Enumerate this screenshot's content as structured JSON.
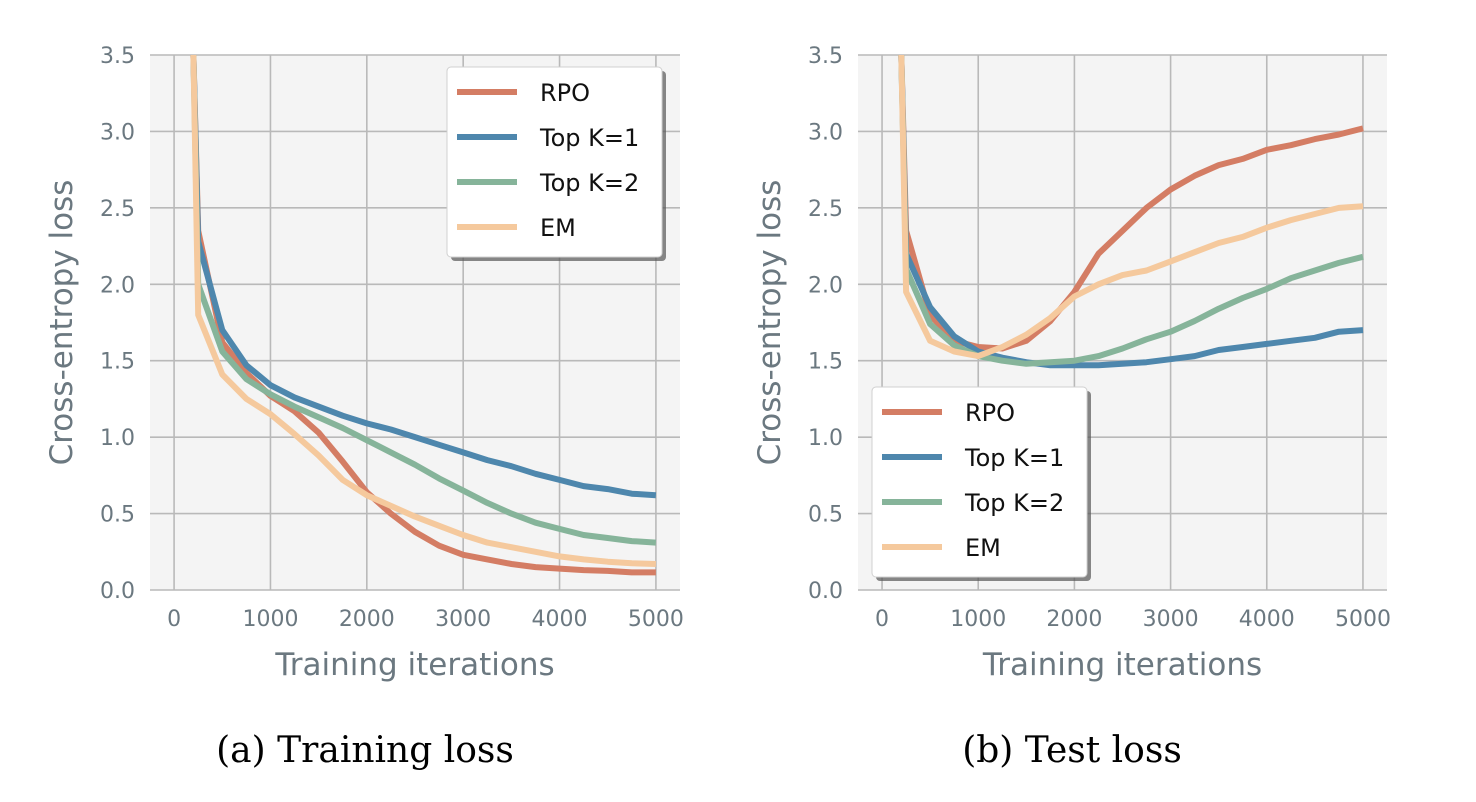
{
  "captions": [
    "(a)  Training loss",
    "(b)  Test loss"
  ],
  "colors": {
    "RPO": "#d47d64",
    "Top K=1": "#4e87ad",
    "Top K=2": "#86b49a",
    "EM": "#f5c99d",
    "plot_background": "#f4f4f4",
    "axis_text": "#6b7880"
  },
  "chart_data": [
    {
      "type": "line",
      "title": "Training loss",
      "xlabel": "Training iterations",
      "ylabel": "Cross-entropy loss",
      "xlim": [
        -250,
        5250
      ],
      "ylim": [
        0,
        3.5
      ],
      "x_ticks": [
        "0",
        "1000",
        "2000",
        "3000",
        "4000",
        "5000"
      ],
      "y_ticks": [
        "0.0",
        "0.5",
        "1.0",
        "1.5",
        "2.0",
        "2.5",
        "3.0",
        "3.5"
      ],
      "grid": true,
      "legend": "top-right",
      "series": [
        {
          "name": "RPO",
          "x": [
            200,
            250,
            500,
            750,
            1000,
            1250,
            1500,
            1750,
            2000,
            2250,
            2500,
            2750,
            3000,
            3250,
            3500,
            3750,
            4000,
            4250,
            4500,
            4750,
            5000
          ],
          "values": [
            3.5,
            2.35,
            1.62,
            1.42,
            1.27,
            1.17,
            1.03,
            0.84,
            0.64,
            0.5,
            0.38,
            0.29,
            0.23,
            0.2,
            0.17,
            0.15,
            0.14,
            0.13,
            0.125,
            0.115,
            0.115
          ]
        },
        {
          "name": "Top K=1",
          "x": [
            200,
            250,
            500,
            750,
            1000,
            1250,
            1500,
            1750,
            2000,
            2250,
            2500,
            2750,
            3000,
            3250,
            3500,
            3750,
            4000,
            4250,
            4500,
            4750,
            5000
          ],
          "values": [
            3.5,
            2.28,
            1.7,
            1.47,
            1.34,
            1.26,
            1.2,
            1.14,
            1.09,
            1.05,
            1.0,
            0.95,
            0.9,
            0.85,
            0.81,
            0.76,
            0.72,
            0.68,
            0.66,
            0.63,
            0.62
          ]
        },
        {
          "name": "Top K=2",
          "x": [
            200,
            250,
            500,
            750,
            1000,
            1250,
            1500,
            1750,
            2000,
            2250,
            2500,
            2750,
            3000,
            3250,
            3500,
            3750,
            4000,
            4250,
            4500,
            4750,
            5000
          ],
          "values": [
            3.5,
            2.0,
            1.56,
            1.38,
            1.28,
            1.2,
            1.13,
            1.06,
            0.98,
            0.9,
            0.82,
            0.73,
            0.65,
            0.57,
            0.5,
            0.44,
            0.4,
            0.36,
            0.34,
            0.32,
            0.31
          ]
        },
        {
          "name": "EM",
          "x": [
            200,
            250,
            500,
            750,
            1000,
            1250,
            1500,
            1750,
            2000,
            2250,
            2500,
            2750,
            3000,
            3250,
            3500,
            3750,
            4000,
            4250,
            4500,
            4750,
            5000
          ],
          "values": [
            3.5,
            1.8,
            1.41,
            1.25,
            1.15,
            1.02,
            0.88,
            0.72,
            0.62,
            0.55,
            0.48,
            0.42,
            0.36,
            0.31,
            0.28,
            0.25,
            0.22,
            0.2,
            0.185,
            0.175,
            0.17
          ]
        }
      ]
    },
    {
      "type": "line",
      "title": "Test loss",
      "xlabel": "Training iterations",
      "ylabel": "Cross-entropy loss",
      "xlim": [
        -250,
        5250
      ],
      "ylim": [
        0,
        3.5
      ],
      "x_ticks": [
        "0",
        "1000",
        "2000",
        "3000",
        "4000",
        "5000"
      ],
      "y_ticks": [
        "0.0",
        "0.5",
        "1.0",
        "1.5",
        "2.0",
        "2.5",
        "3.0",
        "3.5"
      ],
      "grid": true,
      "legend": "bottom-left",
      "series": [
        {
          "name": "RPO",
          "x": [
            200,
            250,
            500,
            750,
            1000,
            1250,
            1500,
            1750,
            2000,
            2250,
            2500,
            2750,
            3000,
            3250,
            3500,
            3750,
            4000,
            4250,
            4500,
            4750,
            5000
          ],
          "values": [
            3.5,
            2.35,
            1.8,
            1.63,
            1.59,
            1.58,
            1.63,
            1.76,
            1.95,
            2.2,
            2.35,
            2.5,
            2.62,
            2.71,
            2.78,
            2.82,
            2.88,
            2.91,
            2.95,
            2.98,
            3.02
          ]
        },
        {
          "name": "Top K=1",
          "x": [
            200,
            250,
            500,
            750,
            1000,
            1250,
            1500,
            1750,
            2000,
            2250,
            2500,
            2750,
            3000,
            3250,
            3500,
            3750,
            4000,
            4250,
            4500,
            4750,
            5000
          ],
          "values": [
            3.5,
            2.2,
            1.85,
            1.66,
            1.56,
            1.52,
            1.49,
            1.47,
            1.47,
            1.47,
            1.48,
            1.49,
            1.51,
            1.53,
            1.57,
            1.59,
            1.61,
            1.63,
            1.65,
            1.69,
            1.7
          ]
        },
        {
          "name": "Top K=2",
          "x": [
            200,
            250,
            500,
            750,
            1000,
            1250,
            1500,
            1750,
            2000,
            2250,
            2500,
            2750,
            3000,
            3250,
            3500,
            3750,
            4000,
            4250,
            4500,
            4750,
            5000
          ],
          "values": [
            3.5,
            2.1,
            1.74,
            1.6,
            1.53,
            1.5,
            1.48,
            1.49,
            1.5,
            1.53,
            1.58,
            1.64,
            1.69,
            1.76,
            1.84,
            1.91,
            1.97,
            2.04,
            2.09,
            2.14,
            2.18
          ]
        },
        {
          "name": "EM",
          "x": [
            200,
            250,
            500,
            750,
            1000,
            1250,
            1500,
            1750,
            2000,
            2250,
            2500,
            2750,
            3000,
            3250,
            3500,
            3750,
            4000,
            4250,
            4500,
            4750,
            5000
          ],
          "values": [
            3.5,
            1.95,
            1.63,
            1.56,
            1.53,
            1.59,
            1.67,
            1.78,
            1.92,
            2.0,
            2.06,
            2.09,
            2.15,
            2.21,
            2.27,
            2.31,
            2.37,
            2.42,
            2.46,
            2.5,
            2.51
          ]
        }
      ]
    }
  ]
}
